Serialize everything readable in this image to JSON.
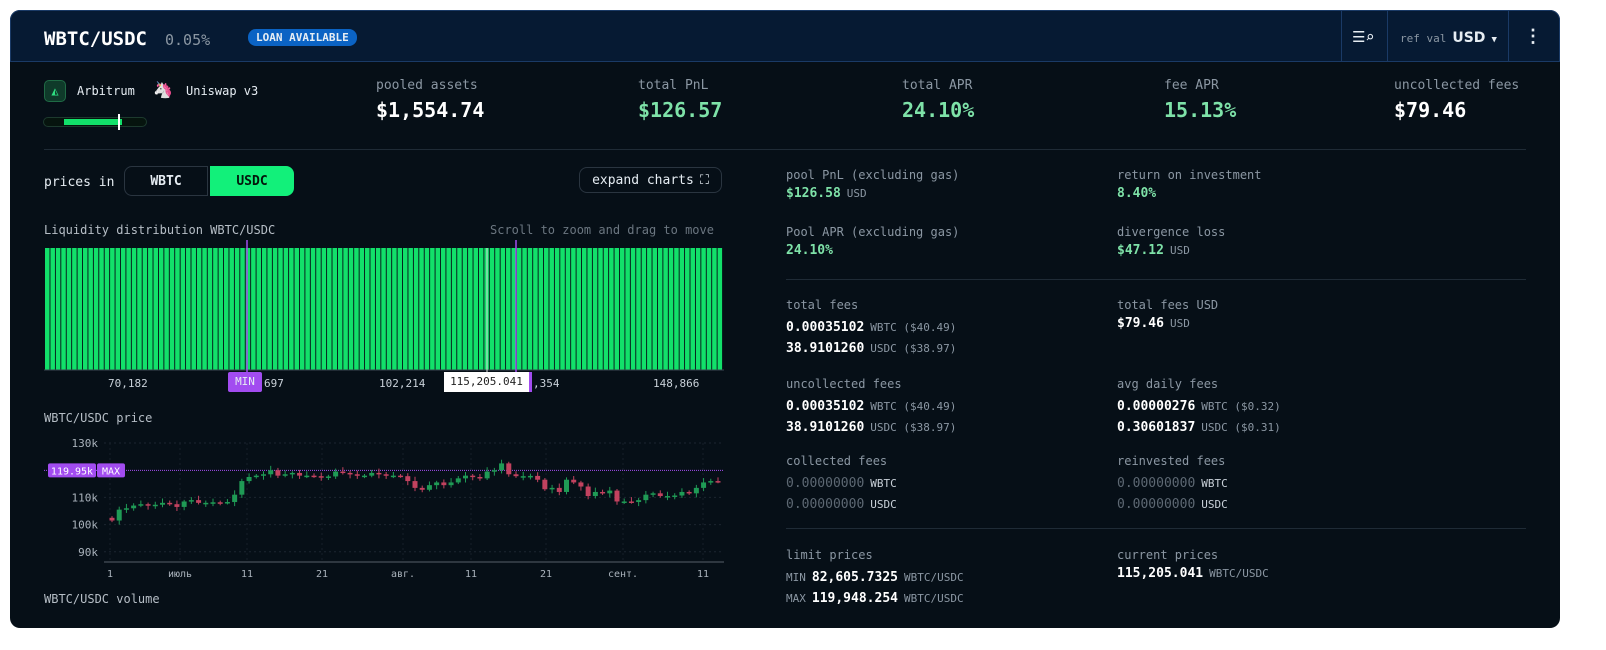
{
  "header": {
    "pair": "WBTC/USDC",
    "fee_tier": "0.05%",
    "badge": "LOAN AVAILABLE",
    "ref_label": "ref val",
    "ref_value": "USD"
  },
  "chain": {
    "network": "Arbitrum",
    "dex": "Uniswap v3",
    "range_fill_pct": 80
  },
  "stats": [
    {
      "label": "pooled assets",
      "value": "$1,554.74",
      "color": "#ffffff"
    },
    {
      "label": "total PnL",
      "value": "$126.57",
      "color": "#7ee2a8"
    },
    {
      "label": "total APR",
      "value": "24.10%",
      "color": "#7ee2a8"
    },
    {
      "label": "fee APR",
      "value": "15.13%",
      "color": "#7ee2a8"
    },
    {
      "label": "uncollected fees",
      "value": "$79.46",
      "color": "#ffffff"
    }
  ],
  "controls": {
    "prices_in": "prices in",
    "options": [
      "WBTC",
      "USDC"
    ],
    "selected": "USDC",
    "expand": "expand charts"
  },
  "liquidity": {
    "title": "Liquidity distribution WBTC/USDC",
    "hint": "Scroll to zoom and drag to move",
    "ticks": [
      "70,182",
      "697",
      "102,214",
      ",354",
      "148,866"
    ],
    "min_tag": "MIN",
    "current_tag": "115,205.041"
  },
  "price_chart": {
    "title": "WBTC/USDC price",
    "yticks": [
      "130k",
      "110k",
      "100k",
      "90k"
    ],
    "xticks": [
      "1",
      "июль",
      "11",
      "21",
      "авг.",
      "11",
      "21",
      "сент.",
      "11"
    ],
    "max_value": "119.95k",
    "max_tag": "MAX",
    "chart_data": {
      "type": "candlestick",
      "ylim": [
        88,
        132
      ],
      "max_line": 119.95,
      "open_start": 102.5,
      "closes": [
        101.5,
        105.5,
        106,
        107,
        107.5,
        107,
        107.3,
        108,
        107.5,
        106.5,
        108.5,
        109,
        108,
        108,
        108.2,
        108,
        108.3,
        111,
        116,
        117.5,
        118,
        118.5,
        120,
        118,
        118.5,
        119,
        118,
        118,
        117.8,
        117.6,
        117.7,
        119.5,
        119,
        118.5,
        118,
        118,
        119,
        118.5,
        118,
        118,
        117.8,
        116,
        113.5,
        112.8,
        114.5,
        115.5,
        114.5,
        115.5,
        117,
        118,
        117.5,
        117,
        119.5,
        120,
        122.5,
        118.5,
        117.8,
        117.8,
        117.9,
        116.5,
        113,
        113.5,
        112,
        116.5,
        115.5,
        114,
        110.5,
        112,
        111.5,
        112.5,
        108.5,
        108.5,
        108.3,
        109,
        111,
        111.5,
        110.5,
        110.5,
        110.7,
        112,
        111.5,
        113.5,
        115.5,
        116,
        115.8
      ]
    }
  },
  "volume_title": "WBTC/USDC volume",
  "details": {
    "pool_pnl": {
      "label": "pool PnL (excluding gas)",
      "value": "$126.58",
      "unit": "USD"
    },
    "roi": {
      "label": "return on investment",
      "value": "8.40%"
    },
    "pool_apr": {
      "label": "Pool APR (excluding gas)",
      "value": "24.10%"
    },
    "divergence": {
      "label": "divergence loss",
      "value": "$47.12",
      "unit": "USD"
    },
    "total_fees": {
      "label": "total fees",
      "rows": [
        {
          "v": "0.00035102",
          "u": "WBTC ($40.49)"
        },
        {
          "v": "38.9101260",
          "u": "USDC ($38.97)"
        }
      ]
    },
    "total_fees_usd": {
      "label": "total fees USD",
      "value": "$79.46",
      "unit": "USD"
    },
    "uncollected": {
      "label": "uncollected fees",
      "rows": [
        {
          "v": "0.00035102",
          "u": "WBTC ($40.49)"
        },
        {
          "v": "38.9101260",
          "u": "USDC ($38.97)"
        }
      ]
    },
    "avg_daily": {
      "label": "avg daily fees",
      "rows": [
        {
          "v": "0.00000276",
          "u": "WBTC ($0.32)"
        },
        {
          "v": "0.30601837",
          "u": "USDC ($0.31)"
        }
      ]
    },
    "collected": {
      "label": "collected fees",
      "rows": [
        {
          "v": "0.00000000",
          "u": "WBTC"
        },
        {
          "v": "0.00000000",
          "u": "USDC"
        }
      ]
    },
    "reinvested": {
      "label": "reinvested fees",
      "rows": [
        {
          "v": "0.00000000",
          "u": "WBTC"
        },
        {
          "v": "0.00000000",
          "u": "USDC"
        }
      ]
    },
    "limit": {
      "label": "limit prices",
      "min_tag": "MIN",
      "min": "82,605.7325",
      "max_tag": "MAX",
      "max": "119,948.254",
      "unit": "WBTC/USDC"
    },
    "current": {
      "label": "current prices",
      "value": "115,205.041",
      "unit": "WBTC/USDC"
    }
  },
  "colors": {
    "green": "#12e06a",
    "up": "#1f9a55",
    "down": "#c2425f",
    "purple": "#a24cf0",
    "badge": "#0b63c4"
  }
}
